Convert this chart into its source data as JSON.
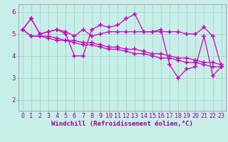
{
  "xlabel": "Windchill (Refroidissement éolien,°C)",
  "bg_color": "#c8eee8",
  "grid_color": "#a8d8cc",
  "line_color": "#cc00cc",
  "spine_color": "#9999aa",
  "xlim": [
    -0.5,
    23.5
  ],
  "ylim": [
    1.5,
    6.35
  ],
  "yticks": [
    2,
    3,
    4,
    5,
    6
  ],
  "xticks": [
    0,
    1,
    2,
    3,
    4,
    5,
    6,
    7,
    8,
    9,
    10,
    11,
    12,
    13,
    14,
    15,
    16,
    17,
    18,
    19,
    20,
    21,
    22,
    23
  ],
  "series": [
    [
      5.2,
      5.7,
      5.0,
      5.1,
      5.2,
      5.0,
      4.0,
      4.0,
      5.2,
      5.4,
      5.3,
      5.4,
      5.7,
      5.9,
      5.1,
      5.1,
      5.2,
      3.6,
      3.0,
      3.4,
      3.5,
      4.9,
      3.1,
      3.5
    ],
    [
      5.2,
      5.7,
      5.0,
      5.1,
      5.2,
      5.1,
      4.9,
      5.2,
      4.9,
      5.0,
      5.1,
      5.1,
      5.1,
      5.1,
      5.1,
      5.1,
      5.1,
      5.1,
      5.1,
      5.0,
      5.0,
      5.3,
      4.9,
      3.5
    ],
    [
      5.2,
      4.9,
      4.9,
      4.9,
      4.8,
      4.7,
      4.7,
      4.6,
      4.6,
      4.5,
      4.4,
      4.4,
      4.3,
      4.3,
      4.2,
      4.1,
      4.1,
      4.0,
      3.9,
      3.9,
      3.8,
      3.7,
      3.7,
      3.6
    ],
    [
      5.2,
      4.9,
      4.9,
      4.8,
      4.7,
      4.7,
      4.6,
      4.5,
      4.5,
      4.4,
      4.3,
      4.3,
      4.2,
      4.1,
      4.1,
      4.0,
      3.9,
      3.9,
      3.8,
      3.7,
      3.7,
      3.6,
      3.5,
      3.5
    ]
  ],
  "tick_fontsize": 6.0,
  "xlabel_fontsize": 6.5,
  "marker_size": 4.5,
  "line_width": 0.9
}
